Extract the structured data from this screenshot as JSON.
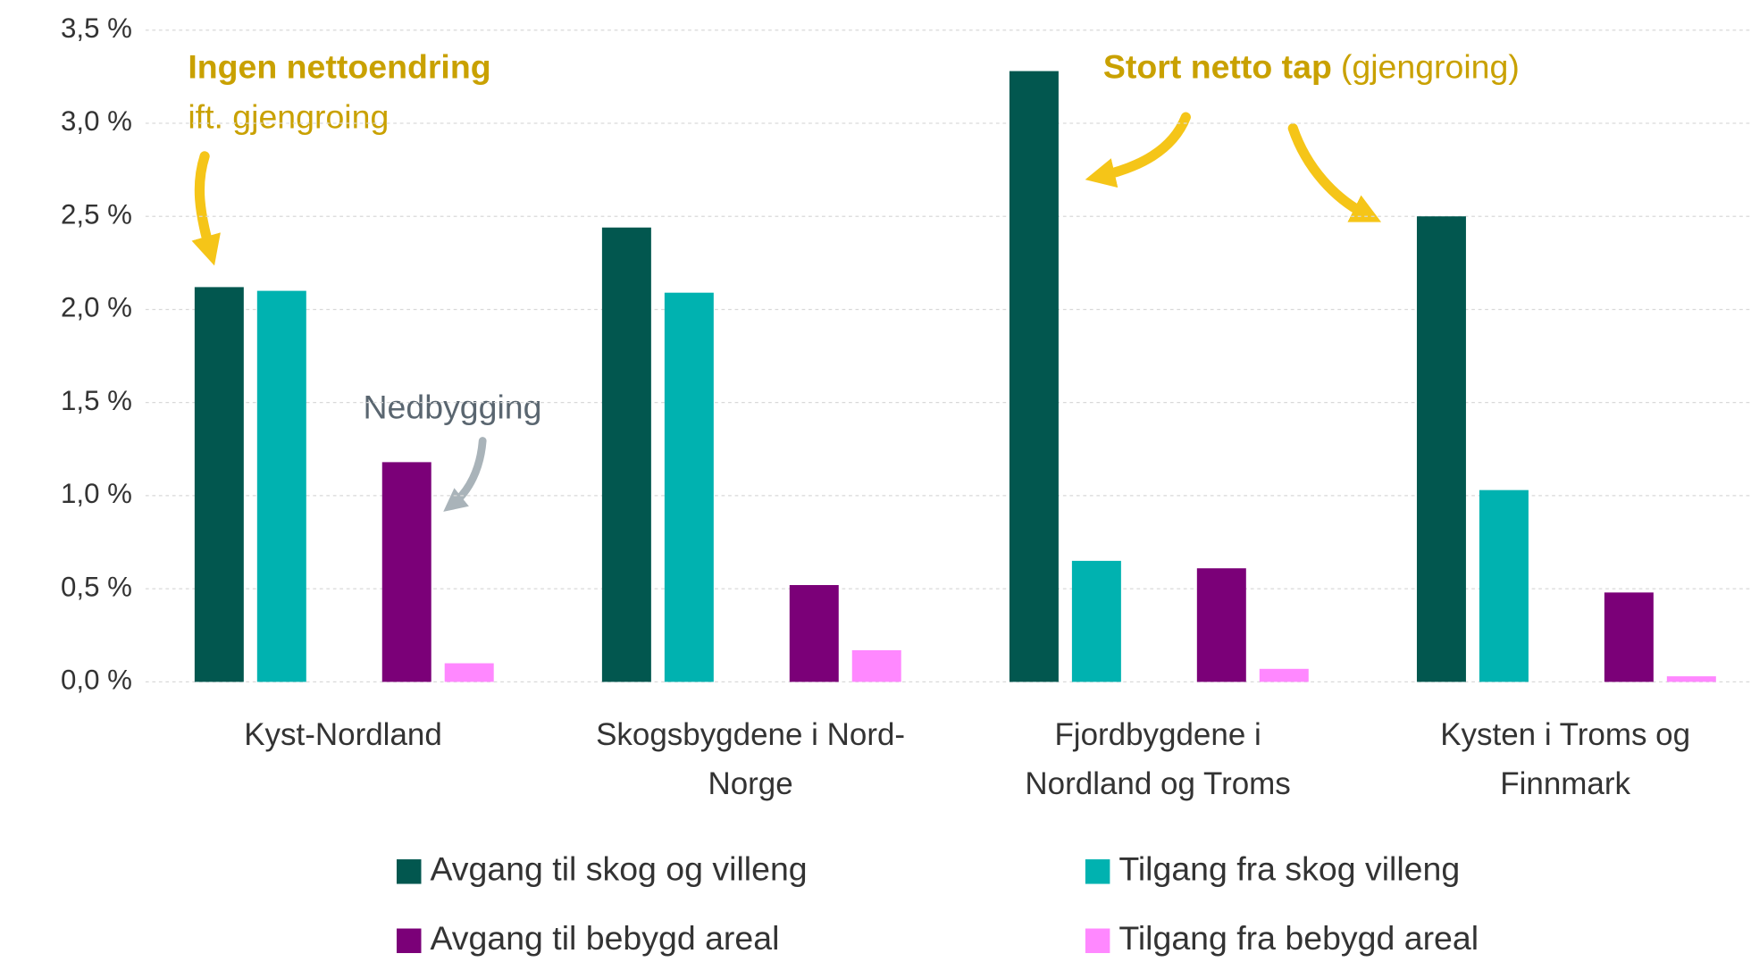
{
  "chart_data": {
    "type": "bar",
    "categories": [
      [
        "Kyst-Nordland"
      ],
      [
        "Skogsbygdene i Nord-",
        "Norge"
      ],
      [
        "Fjordbygdene i",
        "Nordland og Troms"
      ],
      [
        "Kysten i Troms og",
        "Finnmark"
      ]
    ],
    "series": [
      {
        "name": "Avgang til skog og villeng",
        "color": "#02574f",
        "values": [
          2.12,
          2.44,
          3.28,
          2.5
        ]
      },
      {
        "name": "Tilgang fra skog villeng",
        "color": "#00b2b0",
        "values": [
          2.1,
          2.09,
          0.65,
          1.03
        ]
      },
      {
        "name": "Avgang til bebygd areal",
        "color": "#7b0078",
        "values": [
          1.18,
          0.52,
          0.61,
          0.48
        ]
      },
      {
        "name": "Tilgang fra bebygd areal",
        "color": "#ff88ff",
        "values": [
          0.1,
          0.17,
          0.07,
          0.03
        ]
      }
    ],
    "ylim": [
      0,
      3.5
    ],
    "yticks": [
      {
        "value": 0,
        "label": "0,0 %"
      },
      {
        "value": 0.5,
        "label": "0,5 %"
      },
      {
        "value": 1,
        "label": "1,0 %"
      },
      {
        "value": 1.5,
        "label": "1,5 %"
      },
      {
        "value": 2,
        "label": "2,0 %"
      },
      {
        "value": 2.5,
        "label": "2,5 %"
      },
      {
        "value": 3,
        "label": "3,0 %"
      },
      {
        "value": 3.5,
        "label": "3,5 %"
      }
    ],
    "grid": true,
    "annotations": {
      "left": {
        "bold": "Ingen nettoendring",
        "text": "ift. gjengroing"
      },
      "middle": {
        "text": "Nedbygging"
      },
      "right": {
        "bold": "Stort netto tap",
        "text": "(gjengroing)"
      }
    }
  }
}
